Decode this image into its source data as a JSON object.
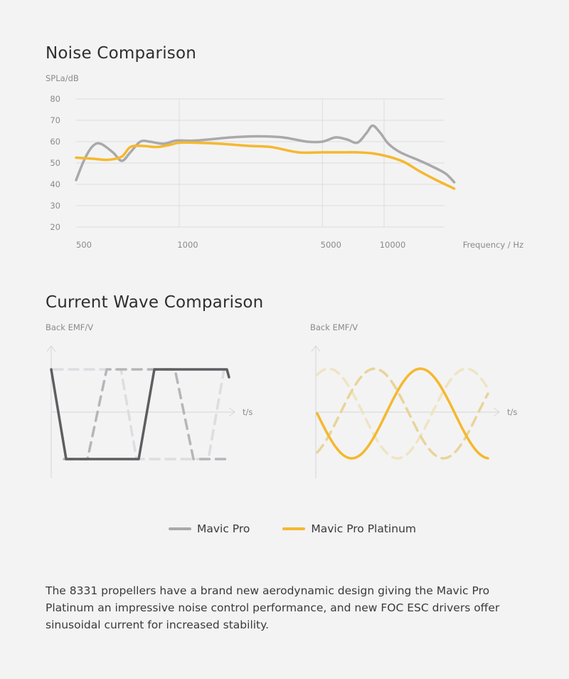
{
  "noise_section": {
    "title": "Noise Comparison",
    "ylabel": "SPLa/dB",
    "xlabel": "Frequency / Hz"
  },
  "wave_section": {
    "title": "Current Wave Comparison",
    "left_ylabel": "Back EMF/V",
    "right_ylabel": "Back EMF/V",
    "left_xlabel": "t/s",
    "right_xlabel": "t/s"
  },
  "legend": {
    "items": [
      {
        "label": "Mavic Pro",
        "color": "#a9a9ac"
      },
      {
        "label": "Mavic Pro Platinum",
        "color": "#f5b82e"
      }
    ]
  },
  "description": "The 8331 propellers have a brand new aerodynamic design giving the Mavic Pro Platinum an impressive noise control performance, and new FOC ESC drivers offer sinusoidal current for increased stability.",
  "chart_data": [
    {
      "type": "line",
      "title": "Noise Comparison",
      "ylabel": "SPLa/dB",
      "xlabel": "Frequency / Hz",
      "x_scale": "log",
      "x_ticks": [
        500,
        1000,
        5000,
        10000
      ],
      "x_tick_labels": [
        "500",
        "1000",
        "5000",
        "10000"
      ],
      "y_ticks": [
        20,
        30,
        40,
        50,
        60,
        70,
        80
      ],
      "ylim": [
        20,
        80
      ],
      "grid": true,
      "series": [
        {
          "name": "Mavic Pro",
          "color": "#a9a9ac",
          "points": [
            [
              500,
              42
            ],
            [
              530,
              52
            ],
            [
              560,
              58
            ],
            [
              590,
              59
            ],
            [
              640,
              55
            ],
            [
              680,
              51
            ],
            [
              720,
              55
            ],
            [
              770,
              60
            ],
            [
              820,
              60
            ],
            [
              900,
              59
            ],
            [
              980,
              60.5
            ],
            [
              1200,
              60.5
            ],
            [
              1800,
              62
            ],
            [
              2400,
              62.5
            ],
            [
              3200,
              62
            ],
            [
              4200,
              60
            ],
            [
              5000,
              60
            ],
            [
              5800,
              62
            ],
            [
              6600,
              61
            ],
            [
              7400,
              59.5
            ],
            [
              8200,
              64
            ],
            [
              8800,
              67.5
            ],
            [
              9600,
              64
            ],
            [
              10500,
              59
            ],
            [
              12000,
              55
            ],
            [
              15000,
              51
            ],
            [
              17500,
              48
            ],
            [
              20000,
              45
            ],
            [
              22000,
              41
            ]
          ]
        },
        {
          "name": "Mavic Pro Platinum",
          "color": "#f5b82e",
          "points": [
            [
              500,
              52.5
            ],
            [
              560,
              52
            ],
            [
              620,
              51.5
            ],
            [
              680,
              53
            ],
            [
              720,
              57.5
            ],
            [
              780,
              58
            ],
            [
              860,
              57.5
            ],
            [
              940,
              58.5
            ],
            [
              1000,
              59.5
            ],
            [
              1200,
              59.5
            ],
            [
              1600,
              59
            ],
            [
              2200,
              58
            ],
            [
              2800,
              57.5
            ],
            [
              3800,
              55
            ],
            [
              5000,
              55
            ],
            [
              6200,
              55
            ],
            [
              7400,
              55
            ],
            [
              8800,
              54.5
            ],
            [
              10500,
              53
            ],
            [
              12500,
              50.5
            ],
            [
              15000,
              46
            ],
            [
              18000,
              42
            ],
            [
              22000,
              38
            ]
          ]
        }
      ]
    },
    {
      "type": "line",
      "title": "Current Wave Comparison",
      "ylabel": "Back EMF/V",
      "xlabel": "t/s",
      "description_of_series": "three-phase trapezoidal back EMF",
      "series": [
        {
          "name": "Mavic Pro",
          "phase": 0,
          "style": "solid",
          "color": "#5e5e61"
        },
        {
          "name": "Mavic Pro",
          "phase": 1,
          "style": "dashed",
          "color": "#b6b6b9"
        },
        {
          "name": "Mavic Pro",
          "phase": 2,
          "style": "dashed",
          "color": "#dcdde1"
        }
      ]
    },
    {
      "type": "line",
      "ylabel": "Back EMF/V",
      "xlabel": "t/s",
      "description_of_series": "three-phase sinusoidal back EMF",
      "series": [
        {
          "name": "Mavic Pro Platinum",
          "phase": 0,
          "style": "solid",
          "color": "#f5b82e"
        },
        {
          "name": "Mavic Pro Platinum",
          "phase": 1,
          "style": "dashed",
          "color": "#e8d49a"
        },
        {
          "name": "Mavic Pro Platinum",
          "phase": 2,
          "style": "dashed",
          "color": "#efe4c3"
        }
      ]
    }
  ]
}
